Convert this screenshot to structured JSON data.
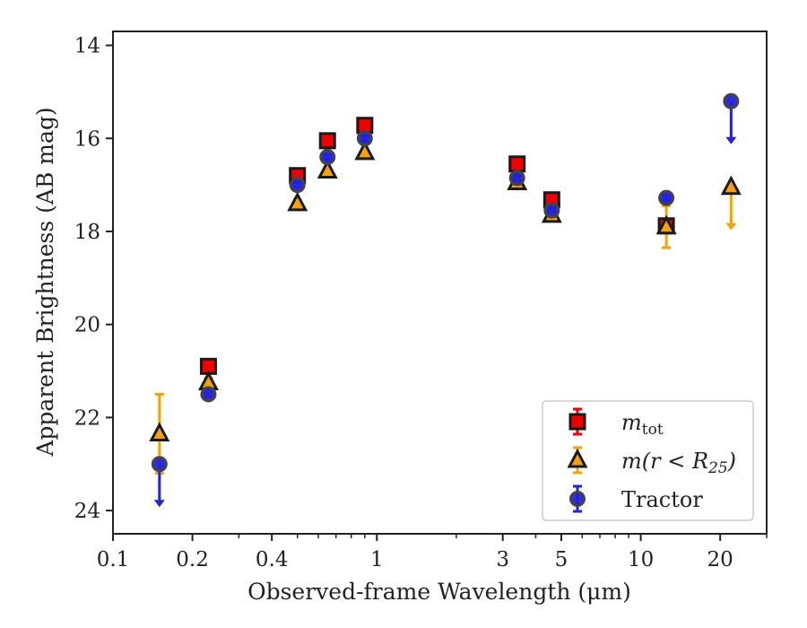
{
  "chart_data": {
    "type": "scatter",
    "xlabel": "Observed-frame Wavelength (μm)",
    "ylabel": "Apparent Brightness (AB mag)",
    "x_scale": "log",
    "xlim": [
      0.1,
      30
    ],
    "ylim": [
      24.5,
      13.7
    ],
    "y_inverted": true,
    "grid": false,
    "legend_position": "bottom-right",
    "x_ticks": [
      0.1,
      0.2,
      0.4,
      1,
      3,
      5,
      10,
      20
    ],
    "x_tick_labels": [
      "0.1",
      "0.2",
      "0.4",
      "1",
      "3",
      "5",
      "10",
      "20"
    ],
    "y_ticks": [
      14,
      16,
      18,
      20,
      22,
      24
    ],
    "y_tick_labels": [
      "14",
      "16",
      "18",
      "20",
      "22",
      "24"
    ],
    "series": [
      {
        "name": "m_tot",
        "legend_base": "m",
        "legend_sub": "tot",
        "marker": "square",
        "color": "#ee0000",
        "edge": "#1a1a1a",
        "x": [
          0.23,
          0.5,
          0.65,
          0.9,
          3.4,
          4.6,
          12.5
        ],
        "y": [
          20.9,
          16.8,
          16.05,
          15.72,
          16.55,
          17.32,
          17.88
        ],
        "yerr": [
          0.1,
          0.05,
          0.05,
          0.05,
          0.05,
          0.05,
          0.1
        ],
        "upper_limit": [
          false,
          false,
          false,
          false,
          false,
          false,
          false
        ]
      },
      {
        "name": "m(r<R25)",
        "legend_base": "m(r < R",
        "legend_sub": "25",
        "marker": "triangle",
        "color": "#f5a20a",
        "edge": "#1a1a1a",
        "x": [
          0.15,
          0.23,
          0.5,
          0.65,
          0.9,
          3.4,
          4.6,
          12.5,
          22
        ],
        "y": [
          22.35,
          21.25,
          17.4,
          16.7,
          16.3,
          16.95,
          17.65,
          17.9,
          17.05
        ],
        "yerr": [
          0.85,
          0.1,
          0.05,
          0.05,
          0.05,
          0.05,
          0.05,
          0.45,
          0
        ],
        "upper_limit": [
          false,
          false,
          false,
          false,
          false,
          false,
          false,
          false,
          true
        ]
      },
      {
        "name": "Tractor",
        "legend_base": "Tractor",
        "legend_sub": "",
        "marker": "circle",
        "color": "#2222dd",
        "edge": "#444444",
        "x": [
          0.15,
          0.23,
          0.5,
          0.65,
          0.9,
          3.4,
          4.6,
          12.5,
          22
        ],
        "y": [
          23.0,
          21.5,
          17.0,
          16.4,
          16.0,
          16.85,
          17.55,
          17.28,
          15.2
        ],
        "yerr": [
          0,
          0.05,
          0.05,
          0.05,
          0.05,
          0.05,
          0.05,
          0.05,
          0
        ],
        "upper_limit": [
          true,
          false,
          false,
          false,
          false,
          false,
          false,
          false,
          true
        ]
      }
    ]
  }
}
